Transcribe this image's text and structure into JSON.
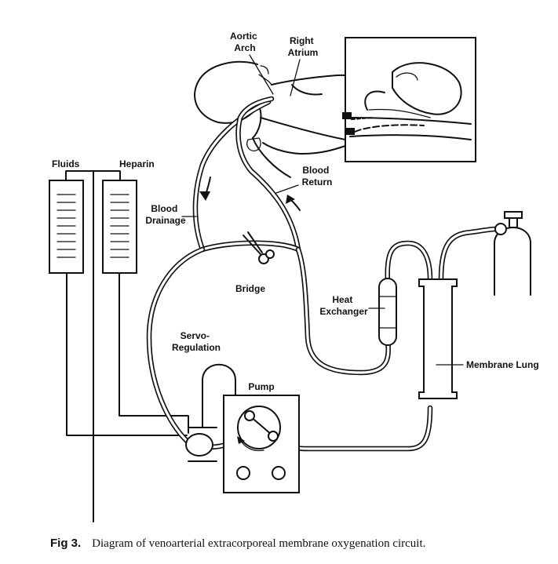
{
  "labels": {
    "aortic_arch": [
      "Aortic",
      "Arch"
    ],
    "right_atrium": [
      "Right",
      "Atrium"
    ],
    "fluids": "Fluids",
    "heparin": "Heparin",
    "blood_return": [
      "Blood",
      "Return"
    ],
    "blood_drainage": [
      "Blood",
      "Drainage"
    ],
    "bridge": "Bridge",
    "heat_exchanger": [
      "Heat",
      "Exchanger"
    ],
    "membrane_lung": "Membrane Lung",
    "servo_regulation": [
      "Servo-",
      "Regulation"
    ],
    "pump": "Pump"
  },
  "caption": {
    "number": "Fig 3.",
    "text": "Diagram of venoarterial extracorporeal membrane oxygenation circuit."
  }
}
